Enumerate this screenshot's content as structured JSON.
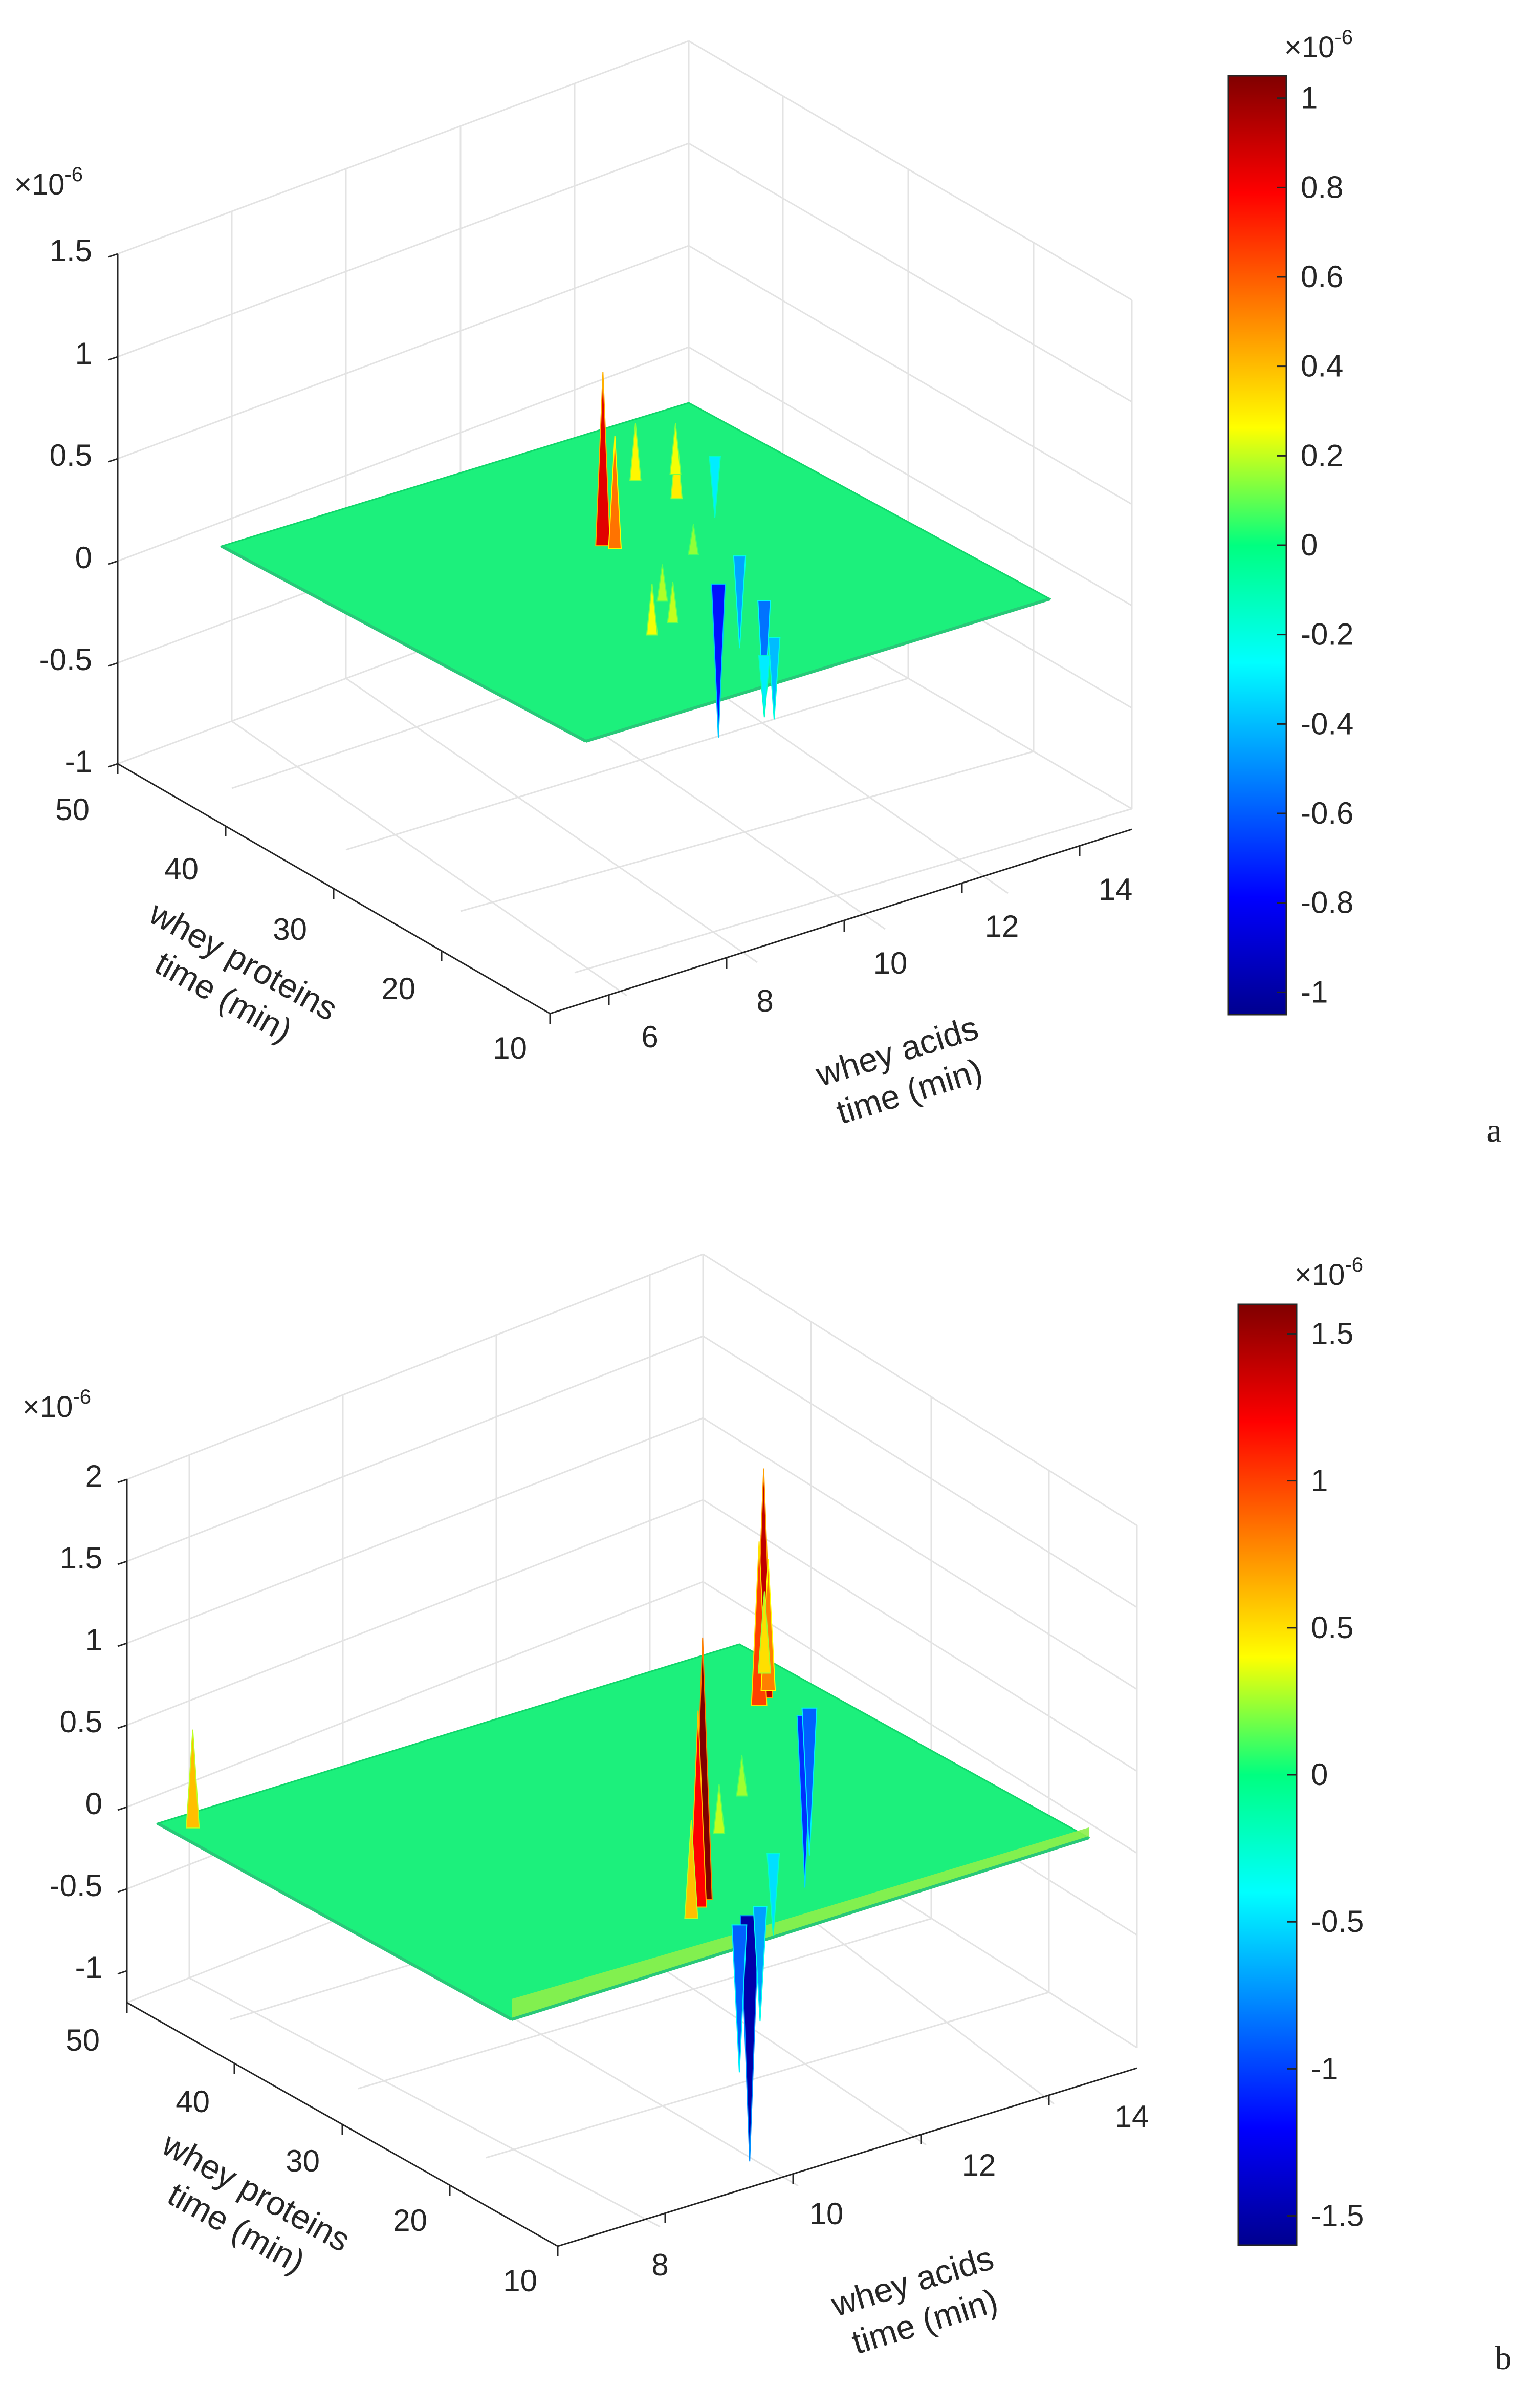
{
  "chart_data": [
    {
      "type": "surface",
      "panel_label": "a",
      "z_multiplier": "×10",
      "z_exponent": "-6",
      "zticks": [
        "1.5",
        "1",
        "0.5",
        "0",
        "-0.5",
        "-1"
      ],
      "zlim": [
        -1,
        1.5
      ],
      "y_ticks": [
        "50",
        "40",
        "30",
        "20",
        "10"
      ],
      "ylabel": [
        "whey proteins",
        "time (min)"
      ],
      "x_ticks": [
        "6",
        "8",
        "10",
        "12",
        "14"
      ],
      "xlabel": [
        "whey acids",
        "time (min)"
      ],
      "colorbar": {
        "multiplier": "×10",
        "exponent": "-6",
        "ticks": [
          "1",
          "0.8",
          "0.6",
          "0.4",
          "0.2",
          "0",
          "-0.2",
          "-0.4",
          "-0.6",
          "-0.8",
          "-1"
        ],
        "range": [
          -1.05,
          1.05
        ]
      },
      "peaks": [
        {
          "u": 0.52,
          "v": 0.38,
          "z": 0.85
        },
        {
          "u": 0.53,
          "v": 0.4,
          "z": 0.55
        },
        {
          "u": 0.42,
          "v": 0.7,
          "z": 0.2
        },
        {
          "u": 0.36,
          "v": 0.72,
          "z": 0.25
        },
        {
          "u": 0.46,
          "v": 0.62,
          "z": 0.18
        },
        {
          "u": 0.74,
          "v": 0.3,
          "z": 0.3
        },
        {
          "u": 0.8,
          "v": 0.22,
          "z": 0.25
        },
        {
          "u": 0.73,
          "v": 0.2,
          "z": 0.28
        },
        {
          "u": 0.62,
          "v": 0.5,
          "z": 0.15
        },
        {
          "u": 0.58,
          "v": 0.62,
          "z": -0.75
        },
        {
          "u": 0.68,
          "v": 0.55,
          "z": -0.45
        },
        {
          "u": 0.6,
          "v": 0.72,
          "z": -0.55
        },
        {
          "u": 0.52,
          "v": 0.85,
          "z": -0.4
        },
        {
          "u": 0.46,
          "v": 0.9,
          "z": -0.3
        },
        {
          "u": 0.9,
          "v": 0.2,
          "z": -0.3
        }
      ]
    },
    {
      "type": "surface",
      "panel_label": "b",
      "z_multiplier": "×10",
      "z_exponent": "-6",
      "zticks": [
        "2",
        "1.5",
        "1",
        "0.5",
        "0",
        "-0.5",
        "-1"
      ],
      "zlim": [
        -1.2,
        2
      ],
      "y_ticks": [
        "50",
        "40",
        "30",
        "20",
        "10"
      ],
      "ylabel": [
        "whey proteins",
        "time (min)"
      ],
      "x_ticks": [
        "8",
        "10",
        "12",
        "14"
      ],
      "xlabel": [
        "whey acids",
        "time (min)"
      ],
      "colorbar": {
        "multiplier": "×10",
        "exponent": "-6",
        "ticks": [
          "1.5",
          "1",
          "0.5",
          "0",
          "-0.5",
          "-1",
          "-1.5"
        ],
        "range": [
          -1.6,
          1.6
        ]
      },
      "peaks": [
        {
          "u": 0.03,
          "v": 0.05,
          "z": 0.6
        },
        {
          "u": 0.45,
          "v": 0.8,
          "z": 1.6
        },
        {
          "u": 0.43,
          "v": 0.82,
          "z": 1.2
        },
        {
          "u": 0.4,
          "v": 0.85,
          "z": 0.6
        },
        {
          "u": 0.47,
          "v": 0.9,
          "z": -1.5
        },
        {
          "u": 0.44,
          "v": 0.92,
          "z": -0.9
        },
        {
          "u": 0.5,
          "v": 0.88,
          "z": -0.7
        },
        {
          "u": 0.92,
          "v": 0.2,
          "z": 1.4
        },
        {
          "u": 0.9,
          "v": 0.22,
          "z": 1.0
        },
        {
          "u": 0.94,
          "v": 0.18,
          "z": 0.8
        },
        {
          "u": 0.97,
          "v": 0.12,
          "z": 0.5
        },
        {
          "u": 0.93,
          "v": 0.3,
          "z": -1.05
        },
        {
          "u": 0.95,
          "v": 0.28,
          "z": -0.9
        },
        {
          "u": 0.6,
          "v": 0.6,
          "z": 0.3
        },
        {
          "u": 0.7,
          "v": 0.5,
          "z": 0.25
        },
        {
          "u": 0.62,
          "v": 0.72,
          "z": -0.5
        }
      ]
    }
  ]
}
